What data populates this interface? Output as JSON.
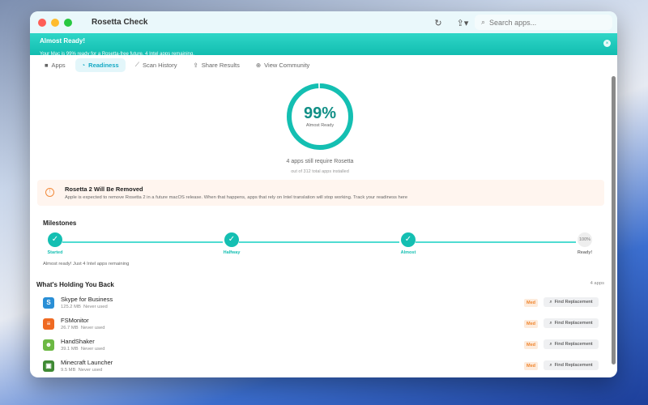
{
  "window": {
    "title": "Rosetta Check"
  },
  "toolbar": {
    "refresh_icon": "refresh-icon",
    "share_icon": "share-icon",
    "search_placeholder": "Search apps..."
  },
  "banner": {
    "title": "Almost Ready!",
    "message": "Your Mac is 99% ready for a Rosetta-free future. 4 Intel apps remaining."
  },
  "tabs": [
    {
      "label": "Apps"
    },
    {
      "label": "Readiness",
      "active": true
    },
    {
      "label": "Scan History"
    },
    {
      "label": "Share Results"
    },
    {
      "label": "View Community"
    }
  ],
  "readiness": {
    "percent_value": 99,
    "percent": "99%",
    "status": "Almost Ready",
    "summary": "4 apps still require Rosetta",
    "detail": "out of 312 total apps installed",
    "color": "#14bfb2"
  },
  "warning": {
    "title": "Rosetta 2 Will Be Removed",
    "message": "Apple is expected to remove Rosetta 2 in a future macOS release. When that happens, apps that rely on Intel translation will stop working. Track your readiness here"
  },
  "milestones": {
    "title": "Milestones",
    "items": [
      {
        "label": "Started",
        "done": true
      },
      {
        "label": "Halfway",
        "done": true
      },
      {
        "label": "Almost",
        "done": true
      },
      {
        "label": "Ready!",
        "done": false,
        "badge": "100%"
      }
    ],
    "note": "Almost ready! Just 4 Intel apps remaining"
  },
  "holding": {
    "title": "What's Holding You Back",
    "count": "4 apps",
    "find_label": "Find Replacement",
    "apps": [
      {
        "name": "Skype for Business",
        "size": "125.2 MB",
        "usage": "Never used",
        "priority": "Med",
        "icon": "skype-icon",
        "color": "#2a8fd6",
        "glyph": "S"
      },
      {
        "name": "FSMonitor",
        "size": "26.7 MB",
        "usage": "Never used",
        "priority": "Med",
        "icon": "fsmonitor-icon",
        "color": "#ef6a22",
        "glyph": "≡"
      },
      {
        "name": "HandShaker",
        "size": "39.1 MB",
        "usage": "Never used",
        "priority": "Med",
        "icon": "handshaker-icon",
        "color": "#6cb843",
        "glyph": "☻"
      },
      {
        "name": "Minecraft Launcher",
        "size": "9.5 MB",
        "usage": "Never used",
        "priority": "Med",
        "icon": "minecraft-icon",
        "color": "#3f8a34",
        "glyph": "▣"
      }
    ]
  }
}
